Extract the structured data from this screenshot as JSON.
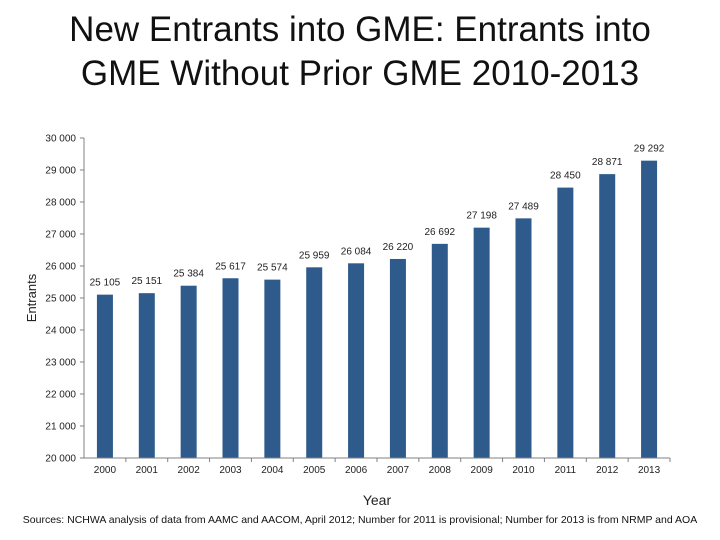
{
  "title_lines": [
    "New Entrants into GME: Entrants into",
    "GME Without Prior GME 2010-2013"
  ],
  "source_note": "Sources: NCHWA analysis of data from AAMC and AACOM, April 2012; Number for 2011 is provisional; Number for 2013 is from NRMP and AOA",
  "colors": {
    "bar": "#2e5a8c",
    "axis": "#808080"
  },
  "chart_data": {
    "type": "bar",
    "title": "New Entrants into GME: Entrants into GME Without Prior GME 2010-2013",
    "xlabel": "Year",
    "ylabel": "Entrants",
    "ylim": [
      20000,
      30000
    ],
    "yticks": [
      20000,
      21000,
      22000,
      23000,
      24000,
      25000,
      26000,
      27000,
      28000,
      29000,
      30000
    ],
    "ytick_labels": [
      "20 000",
      "21 000",
      "22 000",
      "23 000",
      "24 000",
      "25 000",
      "26 000",
      "27 000",
      "28 000",
      "29 000",
      "30 000"
    ],
    "grid": false,
    "categories": [
      "2000",
      "2001",
      "2002",
      "2003",
      "2004",
      "2005",
      "2006",
      "2007",
      "2008",
      "2009",
      "2010",
      "2011",
      "2012",
      "2013"
    ],
    "values": [
      25105,
      25151,
      25384,
      25617,
      25574,
      25959,
      26084,
      26220,
      26692,
      27198,
      27489,
      28450,
      28871,
      29292
    ],
    "value_labels": [
      "25 105",
      "25 151",
      "25 384",
      "25 617",
      "25 574",
      "25 959",
      "26 084",
      "26 220",
      "26 692",
      "27 198",
      "27 489",
      "28 450",
      "28 871",
      "29 292"
    ]
  }
}
